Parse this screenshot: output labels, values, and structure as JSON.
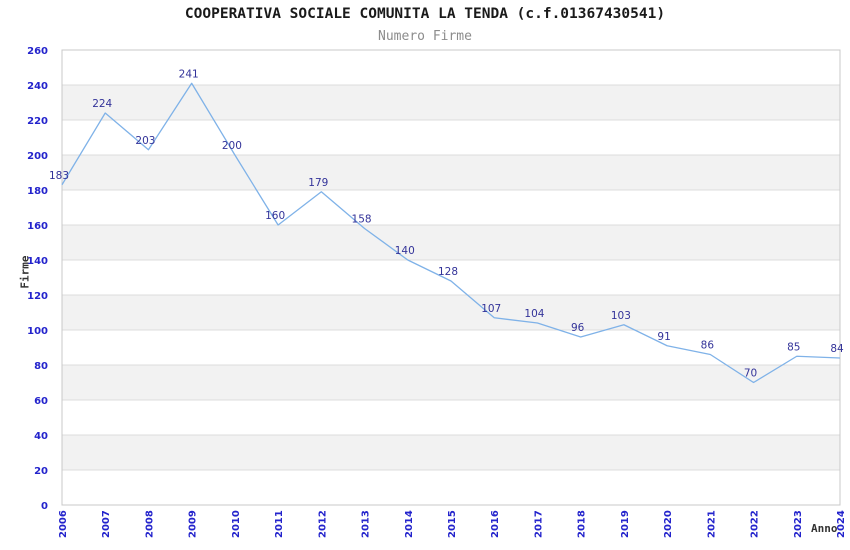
{
  "chart_data": {
    "type": "line",
    "title": "COOPERATIVA SOCIALE COMUNITA LA TENDA (c.f.01367430541)",
    "subtitle": "Numero Firme",
    "xlabel": "Anno",
    "ylabel": "Firme",
    "categories": [
      "2006",
      "2007",
      "2008",
      "2009",
      "2010",
      "2011",
      "2012",
      "2013",
      "2014",
      "2015",
      "2016",
      "2017",
      "2018",
      "2019",
      "2020",
      "2021",
      "2022",
      "2023",
      "2024"
    ],
    "values": [
      183,
      224,
      203,
      241,
      200,
      160,
      179,
      158,
      140,
      128,
      107,
      104,
      96,
      103,
      91,
      86,
      70,
      85,
      84
    ],
    "ylim": [
      0,
      260
    ],
    "ytick_step": 20,
    "legend": "none",
    "grid": "horizontal-bands-alternating",
    "data_labels": "shown-above-points",
    "colors": {
      "line": "#7fb2e8",
      "value_labels": "#333399",
      "tick_labels": "#2323cc",
      "title": "#1a1a1a",
      "subtitle": "#8c8c8c",
      "axis_titles": "#333333",
      "band_fill": "#f2f2f2",
      "band_alt_fill": "#ffffff",
      "gridline": "#dcdcdc",
      "frame": "#c8c8c8",
      "background": "#ffffff"
    }
  }
}
